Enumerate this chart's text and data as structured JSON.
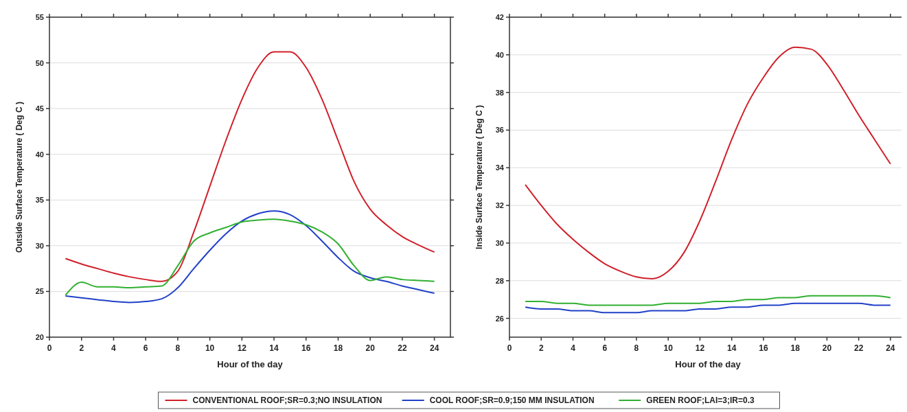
{
  "chart_data": [
    {
      "type": "line",
      "xlabel": "Hour of the day",
      "ylabel": "Outside Surface Temperature ( Deg C )",
      "x": [
        1,
        2,
        3,
        4,
        5,
        6,
        7,
        8,
        9,
        10,
        11,
        12,
        13,
        14,
        15,
        16,
        17,
        18,
        19,
        20,
        21,
        22,
        23,
        24
      ],
      "xlim": [
        0,
        25
      ],
      "xticks": [
        0,
        2,
        4,
        6,
        8,
        10,
        12,
        14,
        16,
        18,
        20,
        22,
        24
      ],
      "ylim": [
        20,
        55
      ],
      "yticks": [
        20,
        25,
        30,
        35,
        40,
        45,
        50,
        55
      ],
      "grid": "y",
      "legend": "bottom",
      "series": [
        {
          "name": "CONVENTIONAL ROOF;SR=0.3;NO INSULATION",
          "color": "#d0202a",
          "values": [
            28.6,
            28.0,
            27.5,
            27.0,
            26.6,
            26.3,
            26.1,
            27.2,
            31.5,
            36.5,
            41.5,
            46.0,
            49.5,
            51.2,
            51.2,
            49.5,
            46.0,
            41.5,
            37.0,
            34.0,
            32.3,
            31.0,
            30.1,
            29.3
          ]
        },
        {
          "name": "COOL ROOF;SR=0.9;150 MM INSULATION",
          "color": "#2040c8",
          "values": [
            24.5,
            24.3,
            24.1,
            23.9,
            23.8,
            23.9,
            24.2,
            25.4,
            27.5,
            29.5,
            31.3,
            32.7,
            33.5,
            33.8,
            33.4,
            32.2,
            30.5,
            28.7,
            27.2,
            26.5,
            26.1,
            25.6,
            25.2,
            24.8
          ]
        },
        {
          "name": "GREEN ROOF;LAI=3;IR=0.3",
          "color": "#30b030",
          "values": [
            24.6,
            26.0,
            25.5,
            25.5,
            25.4,
            25.5,
            25.6,
            27.8,
            30.5,
            31.4,
            32.0,
            32.6,
            32.8,
            32.9,
            32.7,
            32.3,
            31.5,
            30.2,
            27.8,
            26.2,
            26.6,
            26.3,
            26.2,
            26.1
          ]
        }
      ]
    },
    {
      "type": "line",
      "xlabel": "Hour of the day",
      "ylabel": "Inside Surface Temperature ( Deg C )",
      "x": [
        1,
        2,
        3,
        4,
        5,
        6,
        7,
        8,
        9,
        10,
        11,
        12,
        13,
        14,
        15,
        16,
        17,
        18,
        19,
        20,
        21,
        22,
        23,
        24
      ],
      "xlim": [
        0,
        25
      ],
      "xticks": [
        0,
        2,
        4,
        6,
        8,
        10,
        12,
        14,
        16,
        18,
        20,
        22,
        24
      ],
      "ylim": [
        25,
        42
      ],
      "yticks": [
        26,
        28,
        30,
        32,
        34,
        36,
        38,
        40,
        42
      ],
      "grid": "y",
      "series": [
        {
          "color": "#d0202a",
          "values": [
            33.1,
            32.0,
            31.0,
            30.2,
            29.5,
            28.9,
            28.5,
            28.2,
            28.1,
            28.5,
            29.5,
            31.2,
            33.3,
            35.5,
            37.4,
            38.8,
            39.9,
            40.4,
            40.3,
            39.5,
            38.2,
            36.8,
            35.5,
            34.2
          ]
        },
        {
          "color": "#2040c8",
          "values": [
            26.6,
            26.5,
            26.5,
            26.4,
            26.4,
            26.3,
            26.3,
            26.3,
            26.4,
            26.4,
            26.4,
            26.5,
            26.5,
            26.6,
            26.6,
            26.7,
            26.7,
            26.8,
            26.8,
            26.8,
            26.8,
            26.8,
            26.7,
            26.7
          ]
        },
        {
          "color": "#30b030",
          "values": [
            26.9,
            26.9,
            26.8,
            26.8,
            26.7,
            26.7,
            26.7,
            26.7,
            26.7,
            26.8,
            26.8,
            26.8,
            26.9,
            26.9,
            27.0,
            27.0,
            27.1,
            27.1,
            27.2,
            27.2,
            27.2,
            27.2,
            27.2,
            27.1
          ]
        }
      ]
    }
  ]
}
